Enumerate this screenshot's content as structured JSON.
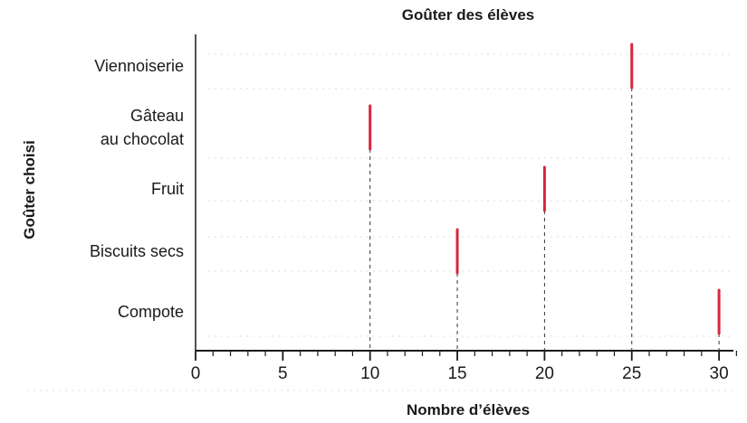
{
  "chart_data": {
    "type": "bar",
    "title": "Goûter des élèves",
    "xlabel": "Nombre d’élèves",
    "ylabel": "Goûter choisi",
    "orientation": "horizontal",
    "categories": [
      "Viennoiserie",
      "Gâteau au chocolat",
      "Fruit",
      "Biscuits secs",
      "Compote"
    ],
    "values": [
      25,
      10,
      20,
      15,
      30
    ],
    "xlim": [
      0,
      31
    ],
    "major_ticks": [
      0,
      5,
      10,
      15,
      20,
      25,
      30
    ],
    "minor_tick_step": 1,
    "grid": false,
    "bar_color": "#d7263d",
    "guide_color": "#333333"
  }
}
